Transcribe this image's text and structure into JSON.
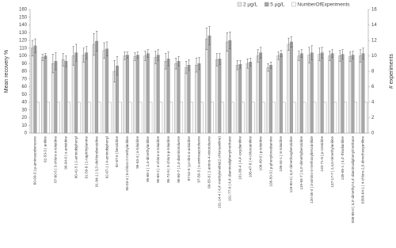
{
  "chart_data": {
    "type": "bar",
    "y_label": "Mean recovery %",
    "y2_label": "# experiments",
    "categories": [
      "60-09-3 | p-aminoazobenzene",
      "62-53-3 | aniline",
      "87-60-5 | 3-chloro-o-toluidine",
      "90-04-0 | o-anisidine",
      "90-41-5 | 2-aminobiphenyl",
      "91-59-8 | 2-naphthylamine",
      "91-94-1 | 3,3'-dichlorobenzidine",
      "92-67-1 | 4-aminobiphenyl",
      "92-87-5 | benzidine",
      "95-03-4 | 5-chloro-2-methylaniline",
      "95-53-4 | o-toluidine",
      "95-68-1 | 2,4-dimethylaniline",
      "95-69-2 | 4-chloro-o-toluidine",
      "95-74-9 | 3-chloro-p-toluidine",
      "95-80-7 | 2,4-diaminotoluene",
      "97-52-9 | p-nitro-o-anisidine",
      "97-56-3 | o-aminoazotoluene",
      "99-55-8 | 2-amino-4-nitrotoluene",
      "101-14-4 | 4,4'-methylenebis(2-chloroaniline)",
      "101-77-9 | 4,4'-diaminodiphenylmethane",
      "101-80-4 | 4,4'-oxydianiline",
      "106-47-8 | 4-chloroaniline",
      "106-49-0 | p-toluidine",
      "106-50-3 | p-phenylenediamine",
      "108-44-1 | m-toluidine",
      "119-90-4 | 3,3'-dimethoxybenzidine",
      "119-93-7 | 3,3'-dimethylbenzidine",
      "120-35-4 | 3-amino-4-methoxybenzanilide",
      "120-71-8 | p-cresidine",
      "137-17-7 | 2,4,5-trimethylaniline",
      "139-65-1 | 4,4'-thiodianiline",
      "838-88-0 | 3,3'-dimethyl-4,4'-diaminodiphenylmethane",
      "6358-64-1 | 4-chloro-2,5-dimethoxyaniline"
    ],
    "series": [
      {
        "name": "2 µg/L",
        "color": "#e6e6e6",
        "values": [
          110,
          98,
          90,
          95,
          100,
          101,
          115,
          107,
          80,
          100,
          99,
          100,
          98,
          93,
          90,
          85,
          88,
          122,
          95,
          118,
          88,
          90,
          100,
          85,
          100,
          115,
          100,
          101,
          102,
          100,
          100,
          99,
          100
        ],
        "errors": [
          10,
          4,
          12,
          8,
          12,
          9,
          14,
          10,
          14,
          5,
          5,
          6,
          8,
          10,
          7,
          8,
          9,
          14,
          8,
          12,
          6,
          6,
          8,
          5,
          5,
          8,
          6,
          10,
          8,
          6,
          7,
          6,
          8
        ]
      },
      {
        "name": "5 µg/L",
        "color": "#a6a6a6",
        "values": [
          113,
          100,
          93,
          93,
          104,
          104,
          119,
          109,
          87,
          101,
          101,
          103,
          101,
          96,
          93,
          88,
          90,
          126,
          96,
          120,
          89,
          92,
          104,
          88,
          103,
          118,
          103,
          104,
          104,
          103,
          102,
          101,
          103
        ],
        "errors": [
          9,
          3,
          11,
          7,
          11,
          8,
          13,
          9,
          12,
          4,
          4,
          5,
          7,
          9,
          6,
          7,
          8,
          12,
          7,
          11,
          5,
          5,
          7,
          4,
          4,
          7,
          5,
          9,
          7,
          5,
          6,
          5,
          7
        ]
      },
      {
        "name": "NumberOfExperiments",
        "color": "#ffffff",
        "axis": "y2",
        "values": [
          4,
          4,
          4,
          4,
          4,
          4,
          4,
          4,
          4,
          4,
          4,
          4,
          4,
          4,
          4,
          4,
          4,
          4,
          4,
          4,
          4,
          4,
          4,
          4,
          4,
          4,
          4,
          4,
          4,
          4,
          4,
          4,
          4
        ]
      }
    ],
    "ylim": [
      0,
      160
    ],
    "yticks": [
      0,
      10,
      20,
      30,
      40,
      50,
      60,
      70,
      80,
      90,
      100,
      110,
      120,
      130,
      140,
      150,
      160
    ],
    "y2lim": [
      0,
      16
    ],
    "y2ticks": [
      0,
      2,
      4,
      6,
      8,
      10,
      12,
      14,
      16
    ],
    "legend": "top-right",
    "grid": false
  }
}
